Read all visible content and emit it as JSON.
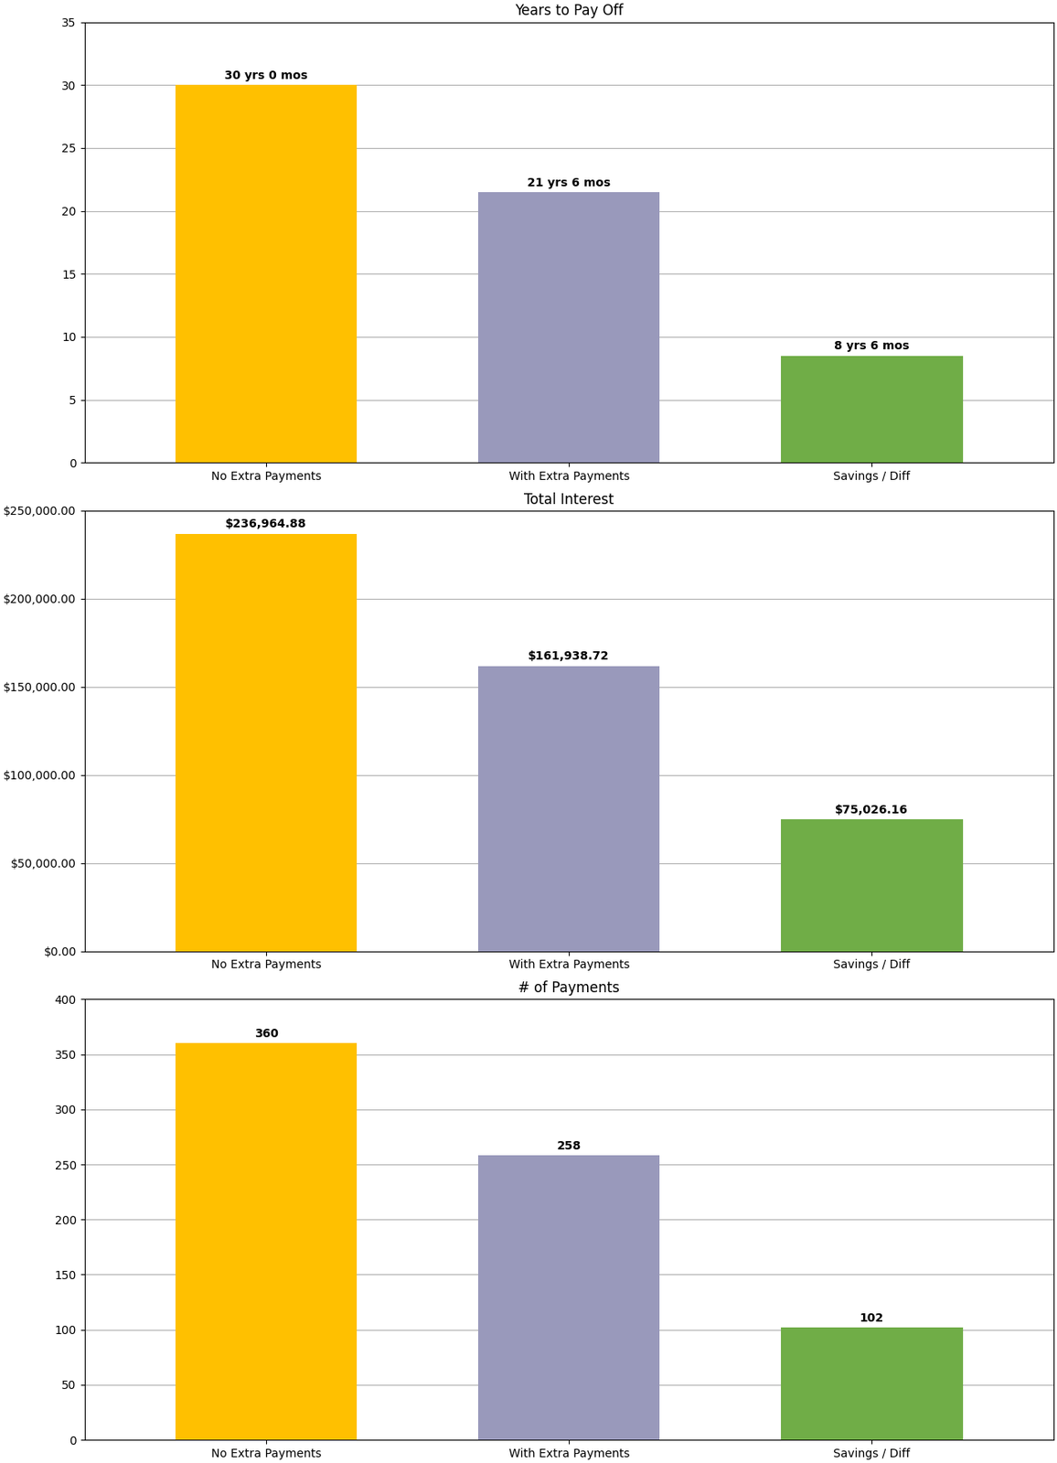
{
  "chart_data": [
    {
      "type": "bar",
      "title": "Years to Pay Off",
      "categories": [
        "No Extra Payments",
        "With Extra Payments",
        "Savings / Diff"
      ],
      "values": [
        30,
        21.5,
        8.5
      ],
      "value_labels": [
        "30 yrs 0 mos",
        "21 yrs 6 mos",
        "8 yrs 6 mos"
      ],
      "data_labels": true,
      "colors": [
        "#FFC000",
        "#9999BB",
        "#70AD47"
      ],
      "ylim": [
        0,
        35
      ],
      "yticks": [
        0,
        5,
        10,
        15,
        20,
        25,
        30,
        35
      ],
      "grid": true
    },
    {
      "type": "bar",
      "title": "Total Interest",
      "categories": [
        "No Extra Payments",
        "With Extra Payments",
        "Savings / Diff"
      ],
      "values": [
        236964.88,
        161938.72,
        75026.16
      ],
      "value_labels": [
        "$236,964.88",
        "$161,938.72",
        "$75,026.16"
      ],
      "data_labels": true,
      "colors": [
        "#FFC000",
        "#9999BB",
        "#70AD47"
      ],
      "ylim": [
        0,
        250000
      ],
      "yticks": [
        {
          "value": 0,
          "label": "$0.00"
        },
        {
          "value": 50000,
          "label": "$50,000.00"
        },
        {
          "value": 100000,
          "label": "$100,000.00"
        },
        {
          "value": 150000,
          "label": "$150,000.00"
        },
        {
          "value": 200000,
          "label": "$200,000.00"
        },
        {
          "value": 250000,
          "label": "$250,000.00"
        }
      ],
      "grid": true
    },
    {
      "type": "bar",
      "title": "# of Payments",
      "categories": [
        "No Extra Payments",
        "With Extra Payments",
        "Savings / Diff"
      ],
      "values": [
        360,
        258,
        102
      ],
      "data_labels": true,
      "colors": [
        "#FFC000",
        "#9999BB",
        "#70AD47"
      ],
      "ylim": [
        0,
        400
      ],
      "yticks": [
        0,
        50,
        100,
        150,
        200,
        250,
        300,
        350,
        400
      ],
      "grid": true
    }
  ]
}
